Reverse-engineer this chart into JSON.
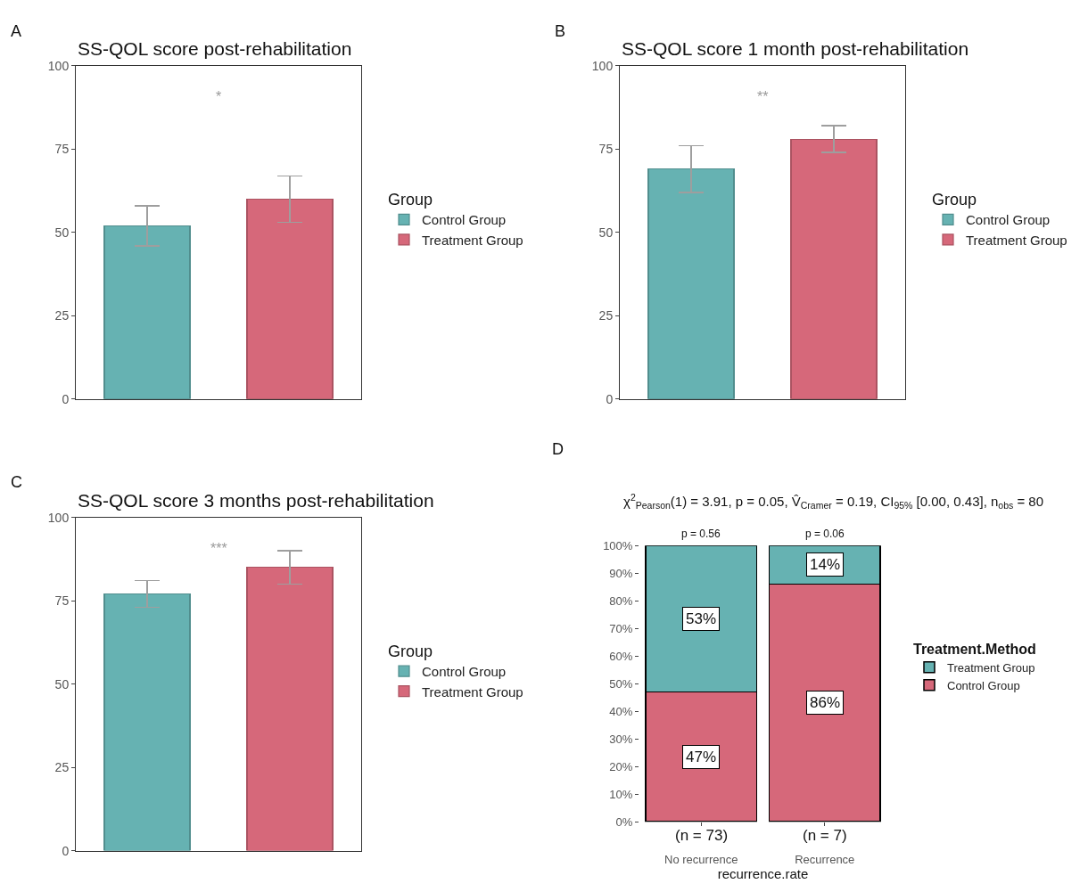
{
  "chart_data": [
    {
      "type": "bar",
      "title": "SS-QOL score post-rehabilitation",
      "legend_title": "Group",
      "categories": [
        null,
        null
      ],
      "series": [
        {
          "name": "Control Group",
          "color": "#66b2b2",
          "values": [
            52,
            null
          ],
          "errors": [
            [
              46,
              58
            ],
            null
          ]
        },
        {
          "name": "Treatment Group",
          "color": "#d6687a",
          "values": [
            null,
            60
          ],
          "errors": [
            null,
            [
              53,
              67
            ]
          ]
        }
      ],
      "ylim": [
        0,
        100
      ],
      "yticks": [
        0,
        25,
        50,
        75,
        100
      ],
      "grid": false,
      "legend": "right",
      "tick_labels": "y",
      "annotations": [
        "A",
        "*"
      ]
    },
    {
      "type": "bar",
      "title": "SS-QOL score 1 month post-rehabilitation",
      "legend_title": "Group",
      "categories": [
        null,
        null
      ],
      "series": [
        {
          "name": "Control Group",
          "color": "#66b2b2",
          "values": [
            69,
            null
          ],
          "errors": [
            [
              62,
              76
            ],
            null
          ]
        },
        {
          "name": "Treatment Group",
          "color": "#d6687a",
          "values": [
            null,
            78
          ],
          "errors": [
            null,
            [
              74,
              82
            ]
          ]
        }
      ],
      "ylim": [
        0,
        100
      ],
      "yticks": [
        0,
        25,
        50,
        75,
        100
      ],
      "grid": false,
      "legend": "right",
      "tick_labels": "y",
      "annotations": [
        "B",
        "**"
      ]
    },
    {
      "type": "bar",
      "title": "SS-QOL score 3 months post-rehabilitation",
      "legend_title": "Group",
      "categories": [
        null,
        null
      ],
      "series": [
        {
          "name": "Control Group",
          "color": "#66b2b2",
          "values": [
            77,
            null
          ],
          "errors": [
            [
              73,
              81
            ],
            null
          ]
        },
        {
          "name": "Treatment Group",
          "color": "#d6687a",
          "values": [
            null,
            85
          ],
          "errors": [
            null,
            [
              80,
              90
            ]
          ]
        }
      ],
      "ylim": [
        0,
        100
      ],
      "yticks": [
        0,
        25,
        50,
        75,
        100
      ],
      "grid": false,
      "legend": "right",
      "tick_labels": "y",
      "annotations": [
        "C",
        "***"
      ]
    },
    {
      "type": "bar",
      "stacked": true,
      "subtitle": "χ$^{2}$$_{Pearson}$(1) = 3.91, p = 0.05, V̂$_{Cramer}$ = 0.19, CI$_{95%}$ [0.00, 0.43], n$_{obs}$ = 80",
      "xlabel": "recurrence.rate",
      "legend_title": "Treatment.Method",
      "categories": [
        "No recurrence",
        "Recurrence"
      ],
      "series": [
        {
          "name": "Control Group",
          "color": "#d6687a",
          "values": [
            47,
            86
          ],
          "value_labels": [
            "47%",
            "86%"
          ]
        },
        {
          "name": "Treatment Group",
          "color": "#66b2b2",
          "values": [
            53,
            14
          ],
          "value_labels": [
            "53%",
            "14%"
          ]
        }
      ],
      "ylim": [
        0,
        100
      ],
      "yticks": [
        {
          "value": 0,
          "label": "0%"
        },
        {
          "value": 10,
          "label": "10%"
        },
        {
          "value": 20,
          "label": "20%"
        },
        {
          "value": 30,
          "label": "30%"
        },
        {
          "value": 40,
          "label": "40%"
        },
        {
          "value": 50,
          "label": "50%"
        },
        {
          "value": 60,
          "label": "60%"
        },
        {
          "value": 70,
          "label": "70%"
        },
        {
          "value": 80,
          "label": "80%"
        },
        {
          "value": 90,
          "label": "90%"
        },
        {
          "value": 100,
          "label": "100%"
        }
      ],
      "grid": false,
      "legend": "right",
      "annotations": [
        "D",
        {
          "text": "p = 0.56",
          "x": "No recurrence",
          "y": 100
        },
        {
          "text": "p = 0.06",
          "x": "Recurrence",
          "y": 100
        },
        {
          "text": "(n = 73)",
          "x": "No recurrence",
          "y": 0
        },
        {
          "text": "(n = 7)",
          "x": "Recurrence",
          "y": 0
        }
      ]
    }
  ]
}
